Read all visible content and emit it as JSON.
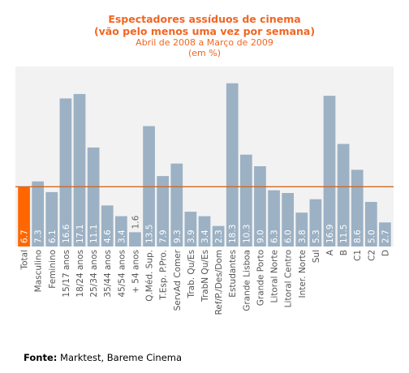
{
  "title": {
    "line1": "Espectadores assíduos de cinema",
    "line2": "(vão pelo menos uma vez por semana)",
    "line3": "Abril de 2008 a Março de 2009",
    "line4": "(em %)"
  },
  "source": {
    "label": "Fonte:",
    "text": "Marktest, Bareme Cinema"
  },
  "colors": {
    "bar": "#9cb1c4",
    "highlight": "#ff6600",
    "reference_line": "#d2691e",
    "plot_background": "#f2f2f2",
    "title": "#f26522",
    "value_on_bar": "#ffffff",
    "value_above_bar": "#666666",
    "category_label": "#555555"
  },
  "chart_data": {
    "type": "bar",
    "title": "Espectadores assíduos de cinema (vão pelo menos uma vez por semana)",
    "subtitle": "Abril de 2008 a Março de 2009 (em %)",
    "xlabel": "",
    "ylabel": "",
    "ylim": [
      0,
      20
    ],
    "grid": false,
    "legend": "none",
    "reference_line": 6.7,
    "highlight_category": "Total",
    "categories": [
      "Total",
      "Masculino",
      "Feminino",
      "15/17 anos",
      "18/24 anos",
      "25/34 anos",
      "35/44 anos",
      "45/54 anos",
      "+ 54  anos",
      "Q.Méd. Sup.",
      "T.Esp. P.Pro.",
      "ServAd Comer",
      "Trab. Qu/Es",
      "TrabN Qu/Es",
      "Ref/P./Des/Dom",
      "Estudantes",
      "Grande Lisboa",
      "Grande Porto",
      "Litoral Norte",
      "Litoral Centro",
      "Inter. Norte",
      "Sul",
      "A",
      "B",
      "C1",
      "C2",
      "D"
    ],
    "values": [
      6.7,
      7.3,
      6.1,
      16.6,
      17.1,
      11.1,
      4.6,
      3.4,
      1.6,
      13.5,
      7.9,
      9.3,
      3.9,
      3.4,
      2.3,
      18.3,
      10.3,
      9.0,
      6.3,
      6.0,
      3.8,
      5.3,
      16.9,
      11.5,
      8.6,
      5.0,
      2.7
    ],
    "value_labels": [
      "6.7",
      "7.3",
      "6.1",
      "16.6",
      "17.1",
      "11.1",
      "4.6",
      "3.4",
      "1.6",
      "13.5",
      "7.9",
      "9.3",
      "3.9",
      "3.4",
      "2.3",
      "18.3",
      "10.3",
      "9.0",
      "6.3",
      "6.0",
      "3.8",
      "5.3",
      "16.9",
      "11.5",
      "8.6",
      "5.0",
      "2.7"
    ]
  }
}
